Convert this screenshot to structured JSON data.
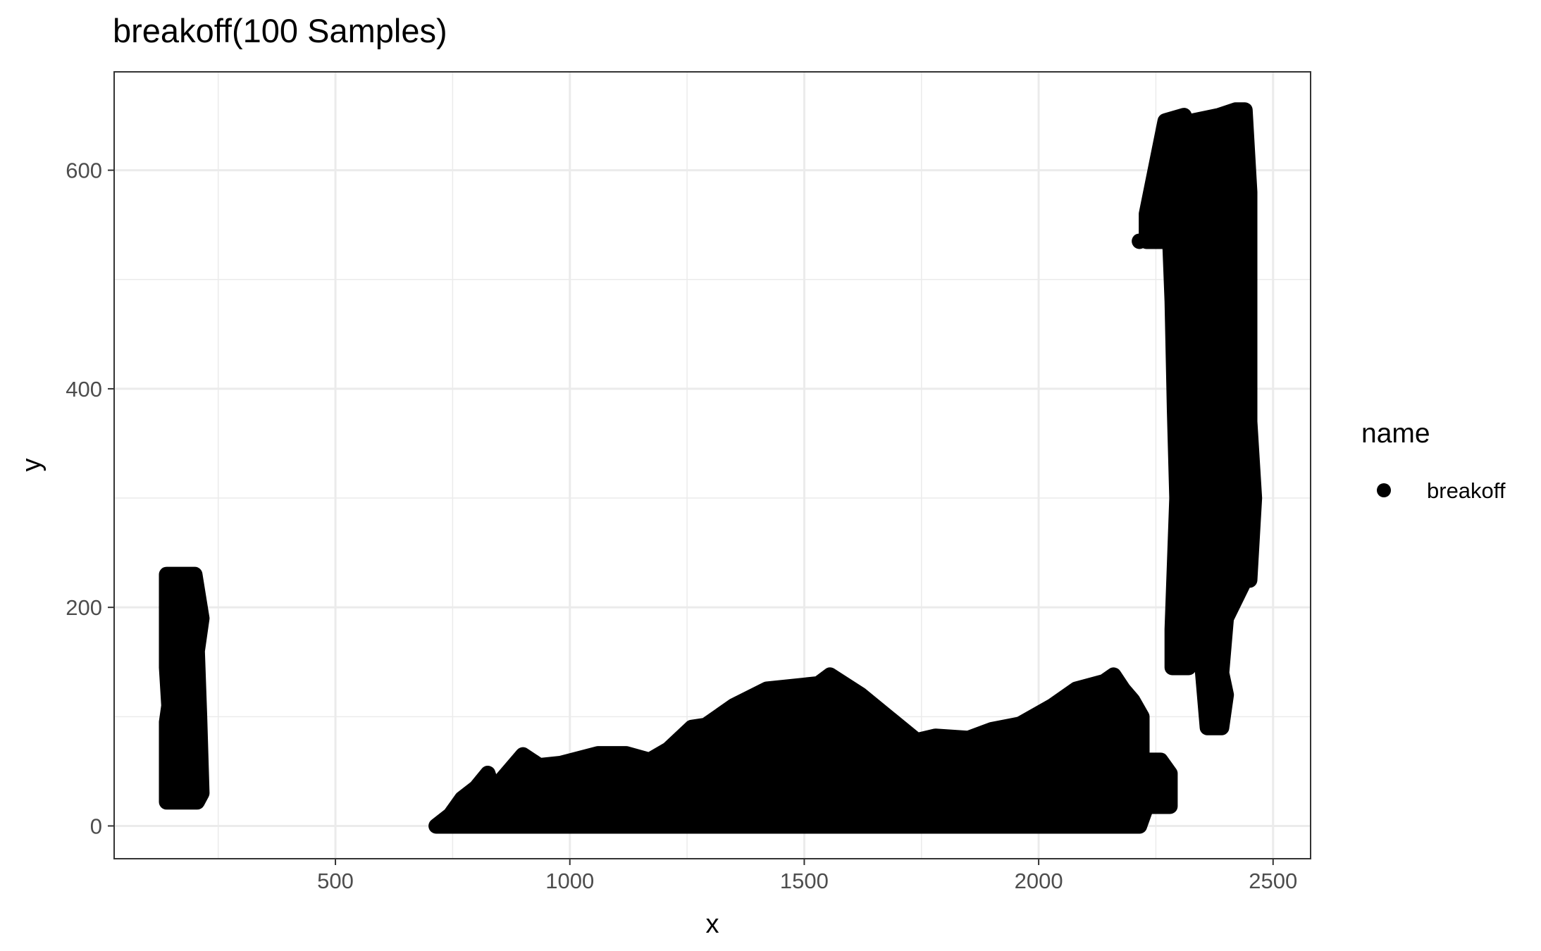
{
  "chart_data": {
    "type": "scatter",
    "title": "breakoff(100 Samples)",
    "xlabel": "x",
    "ylabel": "y",
    "xlim": [
      28,
      2580
    ],
    "ylim": [
      -30,
      690
    ],
    "x_ticks": [
      500,
      1000,
      1500,
      2000,
      2500
    ],
    "y_ticks": [
      0,
      200,
      400,
      600
    ],
    "x_tick_labels": [
      "500",
      "1000",
      "1500",
      "2000",
      "2500"
    ],
    "y_tick_labels": [
      "0",
      "200",
      "400",
      "600"
    ],
    "grid": true,
    "legend_title": "name",
    "legend_position": "right",
    "legend": [
      {
        "label": "breakoff",
        "color": "#000000",
        "marker": "circle"
      }
    ],
    "point_color": "#000000",
    "series": [
      {
        "name": "breakoff",
        "clusters": [
          {
            "region": "left block",
            "outline": [
              [
                140,
                230
              ],
              [
                200,
                230
              ],
              [
                215,
                190
              ],
              [
                205,
                160
              ],
              [
                210,
                100
              ],
              [
                215,
                30
              ],
              [
                205,
                22
              ],
              [
                140,
                22
              ],
              [
                140,
                95
              ],
              [
                145,
                110
              ],
              [
                140,
                145
              ],
              [
                140,
                230
              ]
            ]
          },
          {
            "region": "bottom band",
            "outline": [
              [
                715,
                0
              ],
              [
                745,
                10
              ],
              [
                770,
                25
              ],
              [
                800,
                35
              ],
              [
                825,
                48
              ],
              [
                835,
                35
              ],
              [
                850,
                40
              ],
              [
                900,
                65
              ],
              [
                935,
                55
              ],
              [
                980,
                57
              ],
              [
                1060,
                66
              ],
              [
                1120,
                66
              ],
              [
                1170,
                60
              ],
              [
                1210,
                70
              ],
              [
                1260,
                90
              ],
              [
                1290,
                92
              ],
              [
                1350,
                110
              ],
              [
                1420,
                125
              ],
              [
                1530,
                130
              ],
              [
                1555,
                138
              ],
              [
                1620,
                120
              ],
              [
                1740,
                78
              ],
              [
                1780,
                82
              ],
              [
                1850,
                80
              ],
              [
                1900,
                88
              ],
              [
                1960,
                93
              ],
              [
                2030,
                110
              ],
              [
                2080,
                125
              ],
              [
                2140,
                132
              ],
              [
                2160,
                138
              ],
              [
                2180,
                125
              ],
              [
                2200,
                115
              ],
              [
                2220,
                100
              ],
              [
                2220,
                60
              ],
              [
                2260,
                60
              ],
              [
                2280,
                48
              ],
              [
                2280,
                18
              ],
              [
                2230,
                18
              ],
              [
                2215,
                0
              ],
              [
                715,
                0
              ]
            ]
          },
          {
            "region": "right column 1",
            "outline": [
              [
                2230,
                560
              ],
              [
                2270,
                645
              ],
              [
                2310,
                650
              ],
              [
                2320,
                600
              ],
              [
                2320,
                560
              ],
              [
                2335,
                500
              ],
              [
                2345,
                420
              ],
              [
                2340,
                360
              ],
              [
                2335,
                300
              ],
              [
                2330,
                250
              ],
              [
                2320,
                200
              ],
              [
                2320,
                145
              ],
              [
                2285,
                145
              ],
              [
                2285,
                180
              ],
              [
                2295,
                300
              ],
              [
                2290,
                380
              ],
              [
                2285,
                480
              ],
              [
                2280,
                535
              ],
              [
                2230,
                535
              ],
              [
                2230,
                560
              ]
            ]
          },
          {
            "region": "right column 2",
            "outline": [
              [
                2330,
                645
              ],
              [
                2385,
                650
              ],
              [
                2420,
                655
              ],
              [
                2440,
                655
              ],
              [
                2450,
                580
              ],
              [
                2450,
                440
              ],
              [
                2450,
                370
              ],
              [
                2460,
                300
              ],
              [
                2450,
                225
              ],
              [
                2440,
                225
              ],
              [
                2400,
                190
              ],
              [
                2390,
                140
              ],
              [
                2400,
                120
              ],
              [
                2390,
                90
              ],
              [
                2360,
                90
              ],
              [
                2350,
                140
              ],
              [
                2345,
                180
              ],
              [
                2340,
                250
              ],
              [
                2350,
                330
              ],
              [
                2340,
                470
              ],
              [
                2335,
                560
              ],
              [
                2330,
                645
              ]
            ]
          },
          {
            "region": "isolated points",
            "points": [
              [
                2215,
                535
              ],
              [
                2385,
                140
              ]
            ]
          }
        ]
      }
    ]
  }
}
